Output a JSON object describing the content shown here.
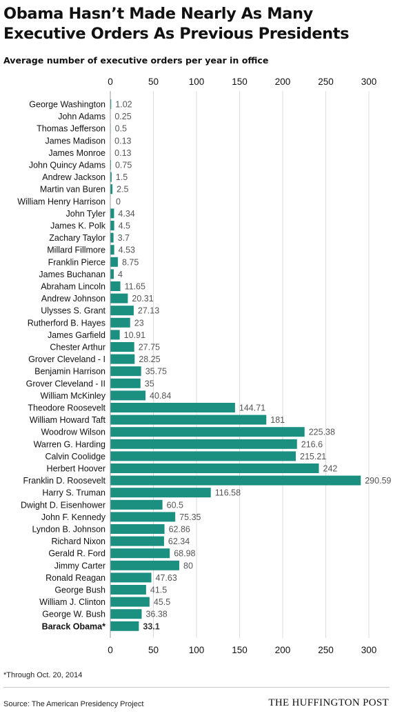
{
  "title": "Obama Hasn’t Made Nearly As Many Executive Orders As Previous Presidents",
  "subtitle": "Average number of executive orders per year in office",
  "footnote": "*Through Oct. 20, 2014",
  "source": "Source: The American Presidency Project",
  "brand": "THE HUFFINGTON POST",
  "colors": {
    "bar": "#1b9080",
    "grid": "#dcdcdc",
    "value_label": "#555555",
    "category_label": "#111111"
  },
  "chart_data": {
    "type": "bar",
    "orientation": "horizontal",
    "xlim": [
      0,
      300
    ],
    "ticks": [
      0,
      50,
      100,
      150,
      200,
      250,
      300
    ],
    "grid": true,
    "highlight": "Barack Obama*",
    "categories": [
      "George Washington",
      "John Adams",
      "Thomas Jefferson",
      "James Madison",
      "James Monroe",
      "John Quincy Adams",
      "Andrew Jackson",
      "Martin van Buren",
      "William Henry Harrison",
      "John Tyler",
      "James K. Polk",
      "Zachary Taylor",
      "Millard Fillmore",
      "Franklin Pierce",
      "James Buchanan",
      "Abraham Lincoln",
      "Andrew Johnson",
      "Ulysses S. Grant",
      "Rutherford B. Hayes",
      "James Garfield",
      "Chester Arthur",
      "Grover Cleveland - I",
      "Benjamin Harrison",
      "Grover Cleveland - II",
      "William McKinley",
      "Theodore Roosevelt",
      "William Howard Taft",
      "Woodrow Wilson",
      "Warren G. Harding",
      "Calvin Coolidge",
      "Herbert Hoover",
      "Franklin D. Roosevelt",
      "Harry S. Truman",
      "Dwight D. Eisenhower",
      "John F. Kennedy",
      "Lyndon B. Johnson",
      "Richard Nixon",
      "Gerald R. Ford",
      "Jimmy Carter",
      "Ronald Reagan",
      "George Bush",
      "William J. Clinton",
      "George W. Bush",
      "Barack Obama*"
    ],
    "values": [
      1.02,
      0.25,
      0.5,
      0.13,
      0.13,
      0.75,
      1.5,
      2.5,
      0,
      4.34,
      4.5,
      3.7,
      4.53,
      8.75,
      4,
      11.65,
      20.31,
      27.13,
      23,
      10.91,
      27.75,
      28.25,
      35.75,
      35,
      40.84,
      144.71,
      181,
      225.38,
      216.6,
      215.21,
      242,
      290.59,
      116.58,
      60.5,
      75.35,
      62.86,
      62.34,
      68.98,
      80,
      47.63,
      41.5,
      45.5,
      36.38,
      33.1
    ],
    "value_labels": [
      "1.02",
      "0.25",
      "0.5",
      "0.13",
      "0.13",
      "0.75",
      "1.5",
      "2.5",
      "0",
      "4.34",
      "4.5",
      "3.7",
      "4.53",
      "8.75",
      "4",
      "11.65",
      "20.31",
      "27.13",
      "23",
      "10.91",
      "27.75",
      "28.25",
      "35.75",
      "35",
      "40.84",
      "144.71",
      "181",
      "225.38",
      "216.6",
      "215.21",
      "242",
      "290.59",
      "116.58",
      "60.5",
      "75.35",
      "62.86",
      "62.34",
      "68.98",
      "80",
      "47.63",
      "41.5",
      "45.5",
      "36.38",
      "33.1"
    ]
  }
}
